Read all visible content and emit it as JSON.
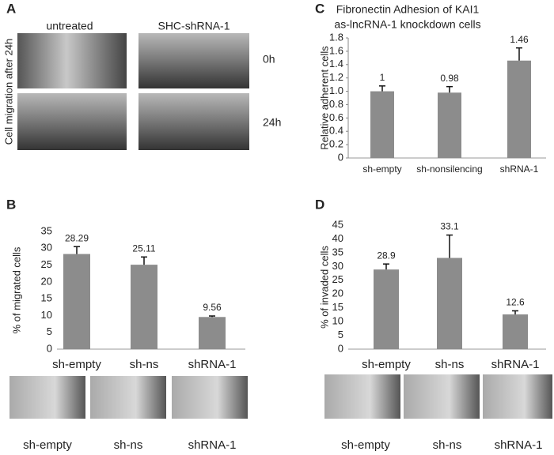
{
  "panel_letters": [
    "A",
    "B",
    "C",
    "D"
  ],
  "panel_a": {
    "columns": [
      "untreated",
      "SHC-shRNA-1"
    ],
    "rows": [
      "0h",
      "24h"
    ],
    "side_label": "Cell migration after 24h"
  },
  "image_labels_b": [
    "sh-empty",
    "sh-ns",
    "shRNA-1"
  ],
  "image_labels_d": [
    "sh-empty",
    "sh-ns",
    "shRNA-1"
  ],
  "chart_data": [
    {
      "type": "bar",
      "y_label": "% of migrated cells",
      "categories": [
        "sh-empty",
        "sh-ns",
        "shRNA-1"
      ],
      "values": [
        28.29,
        25.11,
        9.56
      ],
      "errors": [
        2.2,
        2.3,
        0.3
      ],
      "color": "#8c8c8c",
      "ylim": [
        0,
        35
      ],
      "yticks": [
        0,
        5,
        10,
        15,
        20,
        25,
        30,
        35
      ],
      "y_axis_line": false
    },
    {
      "type": "bar",
      "title": [
        "Fibronectin Adhesion of KAI1",
        "as-lncRNA-1 knockdown cells"
      ],
      "y_label": "Relative adherent cells",
      "categories": [
        "sh-empty",
        "sh-nonsilencing",
        "shRNA-1"
      ],
      "values": [
        1,
        0.98,
        1.46
      ],
      "errors": [
        0.08,
        0.09,
        0.19
      ],
      "color": "#8c8c8c",
      "ylim": [
        0,
        1.8
      ],
      "yticks": [
        0,
        0.2,
        0.4,
        0.6,
        0.8,
        {
          "value": 1,
          "label": "1.0"
        },
        1.2,
        1.4,
        1.6,
        1.8
      ],
      "y_axis_line": true
    },
    {
      "type": "bar",
      "y_label": "% of invaded cells",
      "categories": [
        "sh-empty",
        "sh-ns",
        "shRNA-1"
      ],
      "values": [
        28.9,
        33.1,
        12.6
      ],
      "errors": [
        2.0,
        8.3,
        1.3
      ],
      "color": "#8c8c8c",
      "ylim": [
        0,
        45
      ],
      "yticks": [
        0,
        5,
        10,
        15,
        20,
        25,
        30,
        35,
        40,
        45
      ],
      "y_axis_line": false
    }
  ]
}
